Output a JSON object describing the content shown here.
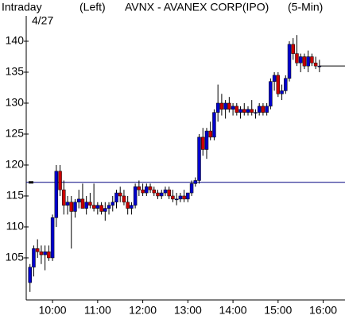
{
  "chart_data": {
    "type": "candlestick",
    "title": "AVNX - AVANEX CORP(IPO)",
    "header_left": "Intraday",
    "date": "4/27",
    "axis_side": "(Left)",
    "interval": "(5-Min)",
    "up_color": "#0000cc",
    "down_color": "#cc0000",
    "reference_line": 117.2,
    "reference_color": "#000080",
    "last_price": 136,
    "xlim": [
      565,
      989
    ],
    "ylim": [
      98.2,
      144.1
    ],
    "yticks": [
      105,
      110,
      115,
      120,
      125,
      130,
      135,
      140
    ],
    "xticks": [
      {
        "value": 600,
        "label": "10:00"
      },
      {
        "value": 660,
        "label": "11:00"
      },
      {
        "value": 720,
        "label": "12:00"
      },
      {
        "value": 780,
        "label": "13:00"
      },
      {
        "value": 840,
        "label": "14:00"
      },
      {
        "value": 900,
        "label": "15:00"
      },
      {
        "value": 960,
        "label": "16:00"
      }
    ],
    "x": [
      570,
      575,
      580,
      585,
      590,
      595,
      600,
      605,
      610,
      615,
      620,
      625,
      630,
      635,
      640,
      645,
      650,
      655,
      660,
      665,
      670,
      675,
      680,
      685,
      690,
      695,
      700,
      705,
      710,
      715,
      720,
      725,
      730,
      735,
      740,
      745,
      750,
      755,
      760,
      765,
      770,
      775,
      780,
      785,
      790,
      795,
      800,
      805,
      810,
      815,
      820,
      825,
      830,
      835,
      840,
      845,
      850,
      855,
      860,
      865,
      870,
      875,
      880,
      885,
      890,
      895,
      900,
      905,
      910,
      915,
      920,
      925,
      930,
      935,
      940,
      945,
      950,
      955
    ],
    "open": [
      101,
      103.5,
      106.5,
      106,
      105.5,
      106,
      105,
      111.5,
      119,
      116,
      113.5,
      114,
      112.5,
      114,
      114.5,
      113,
      114,
      113.5,
      113,
      113.5,
      112.5,
      113,
      113.5,
      114,
      115.5,
      115,
      114,
      113,
      113.5,
      116.5,
      116,
      115.5,
      116.5,
      116,
      115.5,
      115,
      115.5,
      116,
      115,
      114.5,
      114.5,
      115,
      114.5,
      115.5,
      117,
      117.5,
      124.5,
      122.5,
      125.5,
      124.5,
      128.5,
      130,
      129,
      130,
      129,
      129.5,
      128.5,
      129,
      128.5,
      129,
      128.5,
      128.5,
      129.5,
      128.5,
      129.5,
      133.5,
      134.5,
      131.5,
      132,
      134,
      139.5,
      138,
      136.5,
      137.5,
      136,
      137.5,
      136.5,
      136
    ],
    "high": [
      104,
      107,
      108,
      107,
      107,
      107,
      112,
      120,
      120,
      117.5,
      115,
      115,
      114.5,
      116,
      117,
      115,
      115.5,
      117,
      114,
      114,
      114,
      114,
      115,
      116,
      116.5,
      116,
      115,
      114,
      117,
      117.5,
      117,
      117,
      117,
      116.5,
      116,
      116,
      116.5,
      116.5,
      116,
      115.5,
      115.5,
      116,
      115.5,
      117.5,
      118,
      125,
      126,
      126,
      127,
      129,
      133,
      131.5,
      130.5,
      131,
      130,
      130,
      129.5,
      130,
      129.5,
      130.5,
      129,
      130,
      130,
      130,
      134,
      135,
      135,
      133,
      134.5,
      140,
      140.5,
      141,
      138,
      138,
      138.5,
      138,
      137.5,
      137
    ],
    "low": [
      99.5,
      102,
      105,
      104,
      103,
      104.5,
      104.5,
      110,
      115,
      112,
      112,
      106.5,
      111.5,
      113,
      113,
      112,
      113,
      112.5,
      112,
      112,
      111,
      112,
      112.5,
      113,
      114,
      113.5,
      112,
      112,
      113,
      115,
      115,
      115,
      115.5,
      115,
      114.5,
      114.5,
      115,
      114.5,
      114,
      113.5,
      114,
      114,
      114,
      115,
      116.5,
      117,
      121.5,
      121,
      124,
      124,
      127,
      128,
      127.5,
      128.5,
      128,
      128,
      127.5,
      128,
      128,
      128,
      127.5,
      128,
      128,
      128,
      129,
      132,
      131,
      130.5,
      131.5,
      133.5,
      137,
      136,
      135,
      135.5,
      135,
      136,
      135.5,
      135
    ],
    "close": [
      103.5,
      106.5,
      106,
      105.5,
      106,
      105,
      111.5,
      119,
      116,
      113.5,
      114,
      112.5,
      114,
      114.5,
      113,
      114,
      113.5,
      113,
      113.5,
      112.5,
      113,
      113.5,
      114,
      115.5,
      115,
      114,
      113,
      113.5,
      116.5,
      116,
      115.5,
      116.5,
      116,
      115.5,
      115,
      115.5,
      116,
      115,
      114.5,
      114.5,
      115,
      114.5,
      115.5,
      117,
      117.5,
      124.5,
      122.5,
      125.5,
      124.5,
      128.5,
      130,
      129,
      130,
      129,
      129.5,
      128.5,
      129,
      128.5,
      129,
      128.5,
      128.5,
      129.5,
      128.5,
      129.5,
      133.5,
      134.5,
      131.5,
      132,
      134,
      139.5,
      138,
      136.5,
      137.5,
      136,
      137.5,
      136.5,
      136,
      136
    ]
  }
}
